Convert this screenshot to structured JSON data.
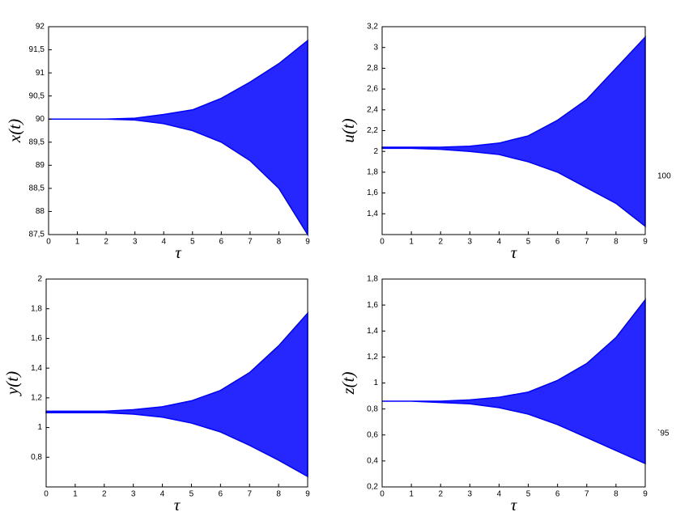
{
  "chart_data": [
    {
      "type": "band",
      "ylabel": "x(t)",
      "xlabel": "τ",
      "x": [
        0,
        1,
        2,
        3,
        4,
        5,
        6,
        7,
        8,
        9
      ],
      "series": [
        {
          "color": "#0000ff",
          "values": [
            90,
            90,
            90,
            90.02,
            90.1,
            90.2,
            90.45,
            90.8,
            91.2,
            91.7
          ]
        },
        {
          "color": "#0000ff",
          "values": [
            90,
            90,
            90,
            89.98,
            89.9,
            89.75,
            89.5,
            89.1,
            88.5,
            87.5
          ]
        }
      ],
      "xlim": [
        0,
        9
      ],
      "xticks": [
        0,
        1,
        2,
        3,
        4,
        5,
        6,
        7,
        8,
        9
      ],
      "ylim": [
        87.5,
        92
      ],
      "yticks": [
        {
          "value": 87.5,
          "label": "87,5"
        },
        88,
        {
          "value": 88.5,
          "label": "88,5"
        },
        89,
        {
          "value": 89.5,
          "label": "89,5"
        },
        90,
        {
          "value": 90.5,
          "label": "90,5"
        },
        91,
        {
          "value": 91.5,
          "label": "91,5"
        },
        92
      ]
    },
    {
      "type": "band",
      "ylabel": "u(t)",
      "xlabel": "τ",
      "x": [
        0,
        1,
        2,
        3,
        4,
        5,
        6,
        7,
        8,
        9
      ],
      "series": [
        {
          "color": "#0000ff",
          "values": [
            2.04,
            2.04,
            2.04,
            2.05,
            2.08,
            2.15,
            2.3,
            2.5,
            2.8,
            3.1
          ]
        },
        {
          "color": "#0000ff",
          "values": [
            2.03,
            2.03,
            2.02,
            2.0,
            1.97,
            1.9,
            1.8,
            1.65,
            1.5,
            1.28
          ]
        }
      ],
      "xlim": [
        0,
        9
      ],
      "xticks": [
        0,
        1,
        2,
        3,
        4,
        5,
        6,
        7,
        8,
        9
      ],
      "ylim": [
        1.2,
        3.2
      ],
      "yticks": [
        {
          "value": 1.4,
          "label": "1,4"
        },
        {
          "value": 1.6,
          "label": "1,6"
        },
        {
          "value": 1.8,
          "label": "1,8"
        },
        2,
        {
          "value": 2.2,
          "label": "2,2"
        },
        {
          "value": 2.4,
          "label": "2,4"
        },
        {
          "value": 2.6,
          "label": "2,6"
        },
        {
          "value": 2.8,
          "label": "2,8"
        },
        3,
        {
          "value": 3.2,
          "label": "3,2"
        }
      ]
    },
    {
      "type": "band",
      "ylabel": "y(t)",
      "xlabel": "τ",
      "x": [
        0,
        1,
        2,
        3,
        4,
        5,
        6,
        7,
        8,
        9
      ],
      "series": [
        {
          "color": "#0000ff",
          "values": [
            1.11,
            1.11,
            1.11,
            1.12,
            1.14,
            1.18,
            1.25,
            1.37,
            1.55,
            1.77
          ]
        },
        {
          "color": "#0000ff",
          "values": [
            1.1,
            1.1,
            1.1,
            1.09,
            1.07,
            1.03,
            0.97,
            0.88,
            0.78,
            0.67
          ]
        }
      ],
      "xlim": [
        0,
        9
      ],
      "xticks": [
        0,
        1,
        2,
        3,
        4,
        5,
        6,
        7,
        8,
        9
      ],
      "ylim": [
        0.6,
        2
      ],
      "yticks": [
        {
          "value": 0.8,
          "label": "0,8"
        },
        1,
        {
          "value": 1.2,
          "label": "1,2"
        },
        {
          "value": 1.4,
          "label": "1,4"
        },
        {
          "value": 1.6,
          "label": "1,6"
        },
        {
          "value": 1.8,
          "label": "1,8"
        },
        2
      ]
    },
    {
      "type": "band",
      "ylabel": "z(t)",
      "xlabel": "τ",
      "x": [
        0,
        1,
        2,
        3,
        4,
        5,
        6,
        7,
        8,
        9
      ],
      "series": [
        {
          "color": "#0000ff",
          "values": [
            0.86,
            0.86,
            0.86,
            0.87,
            0.89,
            0.93,
            1.02,
            1.15,
            1.35,
            1.64
          ]
        },
        {
          "color": "#0000ff",
          "values": [
            0.86,
            0.86,
            0.85,
            0.84,
            0.81,
            0.76,
            0.68,
            0.58,
            0.48,
            0.38
          ]
        }
      ],
      "xlim": [
        0,
        9
      ],
      "xticks": [
        0,
        1,
        2,
        3,
        4,
        5,
        6,
        7,
        8,
        9
      ],
      "ylim": [
        0.2,
        1.8
      ],
      "yticks": [
        {
          "value": 0.2,
          "label": "0,2"
        },
        {
          "value": 0.4,
          "label": "0,4"
        },
        {
          "value": 0.6,
          "label": "0,6"
        },
        {
          "value": 0.8,
          "label": "0,8"
        },
        1,
        {
          "value": 1.2,
          "label": "1,2"
        },
        {
          "value": 1.4,
          "label": "1,4"
        },
        {
          "value": 1.6,
          "label": "1,6"
        },
        {
          "value": 1.8,
          "label": "1,8"
        }
      ]
    }
  ],
  "margin_labels": [
    "100",
    "`95"
  ]
}
